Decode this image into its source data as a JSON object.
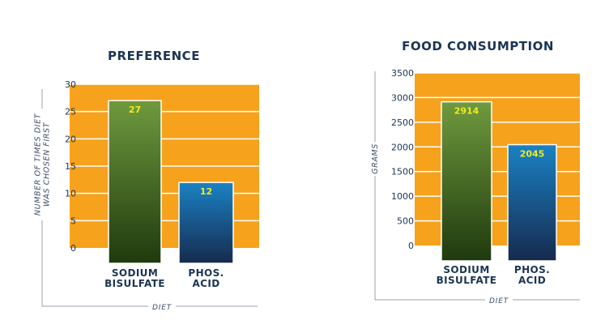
{
  "chart_data": [
    {
      "type": "bar",
      "title": "PREFERENCE",
      "ylabel": [
        "NUMBER OF TIMES DIET",
        "WAS CHOSEN FIRST"
      ],
      "xlabel": "DIET",
      "categories": [
        [
          "SODIUM",
          "BISULFATE"
        ],
        [
          "PHOS.",
          "ACID"
        ]
      ],
      "values": [
        27,
        12
      ],
      "value_labels": [
        "27",
        "12"
      ],
      "yticks": [
        "0",
        "5",
        "10",
        "15",
        "20",
        "25",
        "30"
      ],
      "ylim": [
        0,
        30
      ],
      "grid": true,
      "background_color": "#f6a21c",
      "bar_colors": [
        "green-gradient",
        "blue-gradient"
      ]
    },
    {
      "type": "bar",
      "title": "FOOD CONSUMPTION",
      "ylabel": [
        "GRAMS"
      ],
      "xlabel": "DIET",
      "categories": [
        [
          "SODIUM",
          "BISULFATE"
        ],
        [
          "PHOS.",
          "ACID"
        ]
      ],
      "values": [
        2914,
        2045
      ],
      "value_labels": [
        "2914",
        "2045"
      ],
      "yticks": [
        "0",
        "500",
        "1000",
        "1500",
        "2000",
        "2500",
        "3000",
        "3500"
      ],
      "ylim": [
        0,
        3500
      ],
      "grid": true,
      "background_color": "#f6a21c",
      "bar_colors": [
        "green-gradient",
        "blue-gradient"
      ]
    }
  ]
}
